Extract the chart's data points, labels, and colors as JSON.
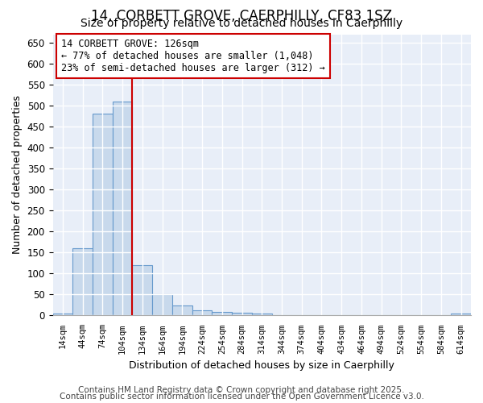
{
  "title_line1": "14, CORBETT GROVE, CAERPHILLY, CF83 1SZ",
  "title_line2": "Size of property relative to detached houses in Caerphilly",
  "xlabel": "Distribution of detached houses by size in Caerphilly",
  "ylabel": "Number of detached properties",
  "bar_labels": [
    "14sqm",
    "44sqm",
    "74sqm",
    "104sqm",
    "134sqm",
    "164sqm",
    "194sqm",
    "224sqm",
    "254sqm",
    "284sqm",
    "314sqm",
    "344sqm",
    "374sqm",
    "404sqm",
    "434sqm",
    "464sqm",
    "494sqm",
    "524sqm",
    "554sqm",
    "584sqm",
    "614sqm"
  ],
  "bar_values": [
    5,
    160,
    480,
    510,
    120,
    50,
    23,
    12,
    8,
    7,
    5,
    0,
    0,
    0,
    0,
    0,
    0,
    0,
    0,
    0,
    5
  ],
  "bar_color": "#c8d9ec",
  "bar_edge_color": "#6699cc",
  "ylim": [
    0,
    670
  ],
  "yticks": [
    0,
    50,
    100,
    150,
    200,
    250,
    300,
    350,
    400,
    450,
    500,
    550,
    600,
    650
  ],
  "red_line_after_index": 3,
  "red_line_color": "#cc0000",
  "annotation_text": "14 CORBETT GROVE: 126sqm\n← 77% of detached houses are smaller (1,048)\n23% of semi-detached houses are larger (312) →",
  "annotation_box_color": "#ffffff",
  "annotation_box_edge": "#cc0000",
  "footnote1": "Contains HM Land Registry data © Crown copyright and database right 2025.",
  "footnote2": "Contains public sector information licensed under the Open Government Licence v3.0.",
  "bg_color": "#ffffff",
  "plot_bg_color": "#e8eef8",
  "title_fontsize": 12,
  "subtitle_fontsize": 10,
  "footnote_fontsize": 7.5
}
